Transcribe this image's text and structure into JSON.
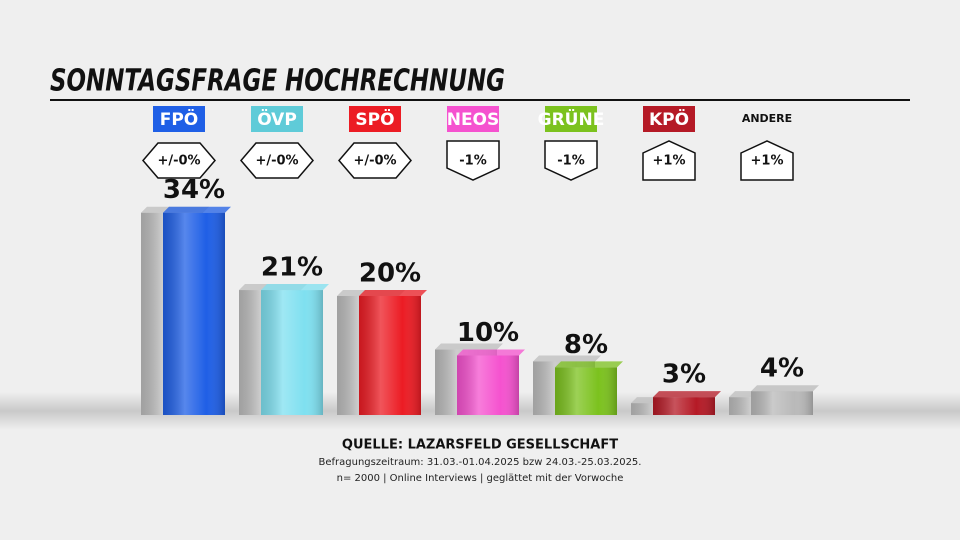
{
  "chart_data": {
    "type": "bar",
    "title": "SONNTAGSFRAGE HOCHRECHNUNG",
    "categories": [
      "FPÖ",
      "ÖVP",
      "SPÖ",
      "NEOS",
      "GRÜNE",
      "KPÖ",
      "ANDERE"
    ],
    "values": [
      34,
      21,
      20,
      10,
      8,
      3,
      4
    ],
    "value_labels": [
      "34%",
      "21%",
      "20%",
      "10%",
      "8%",
      "3%",
      "4%"
    ],
    "previous_values": [
      34,
      21,
      20,
      11,
      9,
      2,
      3
    ],
    "colors": [
      "#1f5fe6",
      "#7fe0f0",
      "#ec1c24",
      "#f552cf",
      "#7cc21e",
      "#b51a26",
      "#b9b9b9"
    ],
    "label_colors": [
      "#1f5fe6",
      "#5fcbd8",
      "#ec1c24",
      "#f552cf",
      "#7cc21e",
      "#b51a26",
      null
    ],
    "previous_color": "#bdbdbd",
    "change_labels": [
      "+/-0%",
      "+/-0%",
      "+/-0%",
      "-1%",
      "-1%",
      "+1%",
      "+1%"
    ],
    "change_directions": [
      "none",
      "none",
      "none",
      "down",
      "down",
      "up",
      "up"
    ],
    "ylim": [
      0,
      40
    ],
    "source": "QUELLE: LAZARSFELD GESELLSCHAFT",
    "notes": [
      "Befragungszeitraum: 31.03.-01.04.2025 bzw 24.03.-25.03.2025.",
      "n= 2000 | Online Interviews | geglättet mit der Vorwoche"
    ]
  }
}
